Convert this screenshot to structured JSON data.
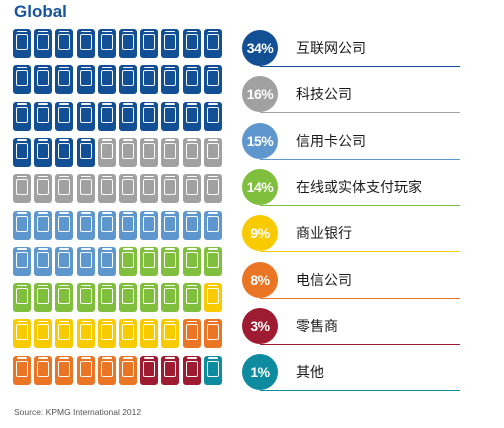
{
  "chart_data": {
    "type": "waffle",
    "title": "Global",
    "source": "Source: KPMG International 2012",
    "categories": [
      "互联网公司",
      "科技公司",
      "信用卡公司",
      "在线或实体支付玩家",
      "商业银行",
      "电信公司",
      "零售商",
      "其他"
    ],
    "values": [
      34,
      16,
      15,
      14,
      9,
      8,
      3,
      1
    ],
    "labels": [
      "34%",
      "16%",
      "15%",
      "14%",
      "9%",
      "8%",
      "3%",
      "1%"
    ],
    "units": "%",
    "grid": {
      "rows": 10,
      "cols": 10,
      "fill_order": "rows, left to right, top to bottom"
    },
    "colors": [
      "#124f95",
      "#a1a1a1",
      "#5e97cd",
      "#7fbf3d",
      "#f8cb00",
      "#ea7524",
      "#9e1b32",
      "#0f8b9f"
    ]
  }
}
